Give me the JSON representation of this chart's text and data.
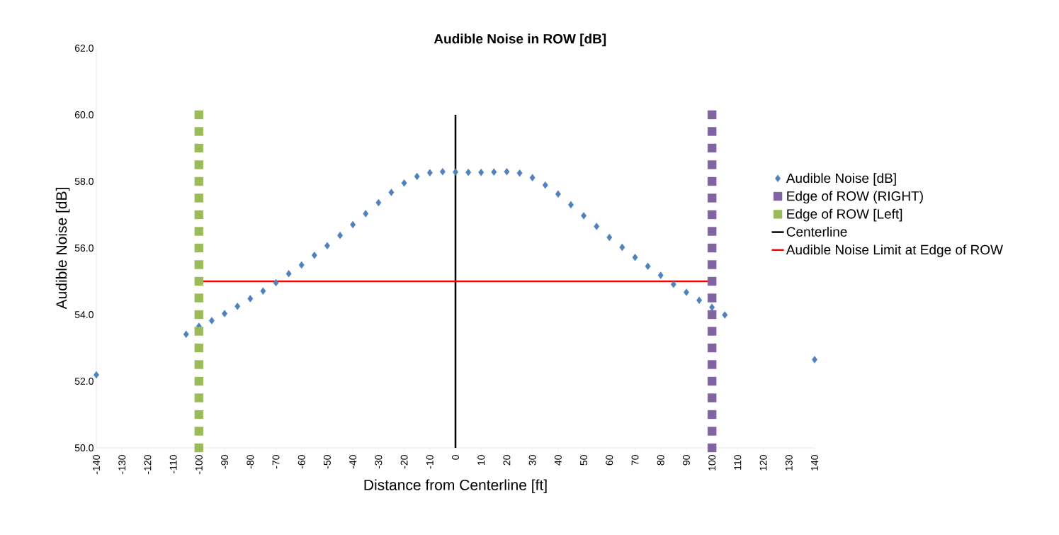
{
  "chart_data": {
    "type": "scatter",
    "title": "Audible Noise in ROW [dB]",
    "xlabel": "Distance from Centerline [ft]",
    "ylabel": "Audible Noise [dB]",
    "xlim": [
      -140,
      140
    ],
    "xticks": [
      -140,
      -130,
      -120,
      -110,
      -100,
      -90,
      -80,
      -70,
      -60,
      -50,
      -40,
      -30,
      -20,
      -10,
      0,
      10,
      20,
      30,
      40,
      50,
      60,
      70,
      80,
      90,
      100,
      110,
      120,
      130,
      140
    ],
    "ylim": [
      50,
      62
    ],
    "yticks": [
      {
        "value": 50,
        "label": "50.0"
      },
      {
        "value": 52,
        "label": "52.0"
      },
      {
        "value": 54,
        "label": "54.0"
      },
      {
        "value": 56,
        "label": "56.0"
      },
      {
        "value": 58,
        "label": "58.0"
      },
      {
        "value": 60,
        "label": "60.0"
      },
      {
        "value": 62,
        "label": "62.0"
      }
    ],
    "legend": "right",
    "series": [
      {
        "name": "Audible Noise [dB]",
        "marker": "diamond",
        "color": "#4f81bd",
        "x": [
          -140,
          -105,
          -100,
          -95,
          -90,
          -85,
          -80,
          -75,
          -70,
          -65,
          -60,
          -55,
          -50,
          -45,
          -40,
          -35,
          -30,
          -25,
          -20,
          -15,
          -10,
          -5,
          0,
          5,
          10,
          15,
          20,
          25,
          30,
          35,
          40,
          45,
          50,
          55,
          60,
          65,
          70,
          75,
          80,
          85,
          90,
          95,
          100,
          105,
          140
        ],
        "values": [
          52.19,
          53.41,
          53.65,
          53.82,
          54.03,
          54.25,
          54.48,
          54.71,
          54.96,
          55.23,
          55.49,
          55.78,
          56.07,
          56.38,
          56.7,
          57.03,
          57.36,
          57.67,
          57.95,
          58.15,
          58.26,
          58.29,
          58.28,
          58.27,
          58.27,
          58.28,
          58.29,
          58.25,
          58.11,
          57.89,
          57.62,
          57.3,
          56.97,
          56.65,
          56.32,
          56.02,
          55.72,
          55.45,
          55.18,
          54.91,
          54.67,
          54.43,
          54.22,
          53.99,
          52.65
        ]
      },
      {
        "name": "Edge of ROW (RIGHT)",
        "marker": "square",
        "color": "#8064a2",
        "x": [
          100,
          100,
          100,
          100,
          100,
          100,
          100,
          100,
          100,
          100,
          100,
          100,
          100,
          100,
          100,
          100,
          100,
          100,
          100,
          100,
          100
        ],
        "values": [
          50,
          50.5,
          51,
          51.5,
          52,
          52.5,
          53,
          53.5,
          54,
          54.5,
          55,
          55.5,
          56,
          56.5,
          57,
          57.5,
          58,
          58.5,
          59,
          59.5,
          60
        ]
      },
      {
        "name": "Edge of ROW [Left]",
        "marker": "square",
        "color": "#9bbb59",
        "x": [
          -100,
          -100,
          -100,
          -100,
          -100,
          -100,
          -100,
          -100,
          -100,
          -100,
          -100,
          -100,
          -100,
          -100,
          -100,
          -100,
          -100,
          -100,
          -100,
          -100,
          -100
        ],
        "values": [
          50,
          50.5,
          51,
          51.5,
          52,
          52.5,
          53,
          53.5,
          54,
          54.5,
          55,
          55.5,
          56,
          56.5,
          57,
          57.5,
          58,
          58.5,
          59,
          59.5,
          60
        ]
      },
      {
        "name": "Centerline",
        "type": "line",
        "marker": "none",
        "color": "#000000",
        "x": [
          0,
          0
        ],
        "values": [
          50,
          60
        ]
      },
      {
        "name": "Audible Noise Limit at Edge of ROW",
        "type": "line",
        "marker": "none",
        "color": "#ff0000",
        "x": [
          -100,
          100
        ],
        "values": [
          55,
          55
        ]
      }
    ]
  }
}
